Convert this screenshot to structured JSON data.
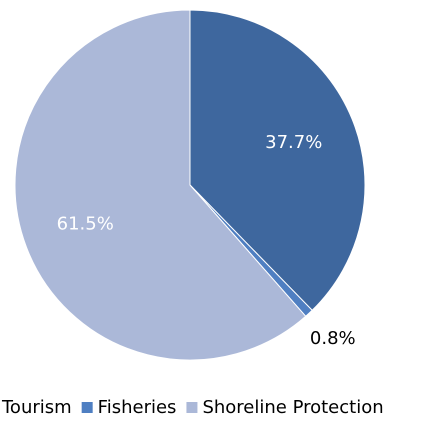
{
  "chart_data": {
    "type": "pie",
    "categories": [
      "Tourism",
      "Fisheries",
      "Shoreline Protection"
    ],
    "values": [
      37.7,
      0.8,
      61.5
    ],
    "value_labels": [
      "37.7%",
      "0.8%",
      "61.5%"
    ],
    "colors": [
      "#3e679e",
      "#4f7fc2",
      "#abb8d8"
    ],
    "legend": "bottom"
  }
}
